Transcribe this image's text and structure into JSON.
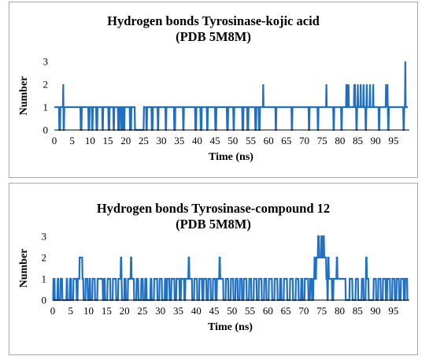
{
  "colors": {
    "series": "#1f6fc4",
    "axis": "#000000",
    "border": "#a6a6a6"
  },
  "chart_data": [
    {
      "type": "line",
      "title": "Hydrogen bonds Tyrosinase-kojic acid",
      "subtitle": "(PDB 5M8M)",
      "xlabel": "Time (ns)",
      "ylabel": "Number",
      "xlim": [
        0,
        99
      ],
      "ylim": [
        0,
        3
      ],
      "xticks": [
        "0",
        "5",
        "10",
        "15",
        "20",
        "25",
        "30",
        "35",
        "40",
        "45",
        "50",
        "55",
        "60",
        "65",
        "70",
        "75",
        "80",
        "85",
        "90",
        "95"
      ],
      "yticks": [
        "0",
        "1",
        "2",
        "3"
      ],
      "grid": false,
      "legend": "none",
      "series": [
        {
          "values_at_0_1ns": "1",
          "gaps_zero": [
            [
              1.4,
              1.6
            ],
            [
              2.6,
              2.7
            ],
            [
              7.4,
              7.6
            ],
            [
              9.6,
              9.8
            ],
            [
              10.6,
              10.7
            ],
            [
              11.8,
              12.0
            ],
            [
              13.5,
              13.6
            ],
            [
              15.2,
              15.4
            ],
            [
              16.6,
              16.7
            ],
            [
              17.9,
              18.2
            ],
            [
              18.8,
              19.0
            ],
            [
              19.5,
              19.6
            ],
            [
              21.2,
              21.5
            ],
            [
              22.6,
              25.0
            ],
            [
              25.8,
              25.9
            ],
            [
              27.3,
              27.5
            ],
            [
              29.0,
              29.1
            ],
            [
              31.2,
              31.3
            ],
            [
              33.6,
              33.8
            ],
            [
              36.1,
              36.2
            ],
            [
              39.5,
              39.7
            ],
            [
              41.0,
              41.2
            ],
            [
              42.8,
              42.9
            ],
            [
              45.1,
              45.3
            ],
            [
              48.4,
              48.6
            ],
            [
              50.2,
              50.3
            ],
            [
              52.7,
              52.9
            ],
            [
              54.1,
              54.3
            ],
            [
              56.3,
              56.5
            ],
            [
              57.3,
              57.5
            ],
            [
              62.0,
              62.1
            ],
            [
              66.5,
              66.6
            ],
            [
              71.3,
              71.4
            ],
            [
              73.8,
              73.9
            ],
            [
              78.2,
              78.3
            ],
            [
              80.4,
              80.5
            ],
            [
              84.6,
              84.7
            ],
            [
              87.2,
              87.3
            ],
            [
              90.9,
              91.0
            ],
            [
              93.5,
              93.6
            ],
            [
              97.8,
              97.9
            ]
          ],
          "peaks_two": [
            2.5,
            58.5,
            76.2,
            81.8,
            82.0,
            82.4,
            84.0,
            84.2,
            85.0,
            85.8,
            86.6,
            87.5,
            88.4,
            89.3,
            92.9,
            93.1,
            93.3
          ],
          "peaks_three": [
            98.3
          ]
        }
      ]
    },
    {
      "type": "line",
      "title": "Hydrogen bonds Tyrosinase-compound 12",
      "subtitle": "(PDB 5M8M)",
      "xlabel": "Time (ns)",
      "ylabel": "Number",
      "xlim": [
        0,
        99
      ],
      "ylim": [
        0,
        3
      ],
      "xticks": [
        "0",
        "5",
        "10",
        "15",
        "20",
        "25",
        "30",
        "35",
        "40",
        "45",
        "50",
        "55",
        "60",
        "65",
        "70",
        "75",
        "80",
        "85",
        "90",
        "95"
      ],
      "yticks": [
        "0",
        "1",
        "2",
        "3"
      ],
      "grid": false,
      "legend": "none",
      "series": [
        {
          "ones": [
            [
              0.2,
              0.5
            ],
            [
              1.4,
              1.5
            ],
            [
              2.2,
              2.6
            ],
            [
              3.9,
              4.0
            ],
            [
              4.8,
              5.1
            ],
            [
              5.8,
              6.6
            ],
            [
              7.0,
              8.5
            ],
            [
              9.2,
              9.7
            ],
            [
              10.3,
              10.4
            ],
            [
              11.1,
              11.7
            ],
            [
              12.5,
              13.9
            ],
            [
              14.4,
              14.5
            ],
            [
              15.3,
              16.0
            ],
            [
              16.8,
              17.6
            ],
            [
              18.3,
              19.2
            ],
            [
              20.0,
              20.3
            ],
            [
              21.0,
              22.6
            ],
            [
              23.4,
              23.8
            ],
            [
              24.7,
              25.1
            ],
            [
              25.8,
              26.1
            ],
            [
              27.3,
              27.5
            ],
            [
              28.3,
              29.1
            ],
            [
              29.8,
              30.4
            ],
            [
              31.3,
              31.4
            ],
            [
              31.9,
              32.5
            ],
            [
              33.1,
              33.9
            ],
            [
              34.5,
              35.3
            ],
            [
              35.8,
              36.6
            ],
            [
              37.0,
              38.8
            ],
            [
              39.5,
              40.2
            ],
            [
              40.9,
              41.6
            ],
            [
              42.1,
              42.8
            ],
            [
              43.4,
              44.0
            ],
            [
              44.7,
              45.3
            ],
            [
              45.8,
              47.5
            ],
            [
              48.3,
              48.9
            ],
            [
              49.7,
              50.3
            ],
            [
              51.0,
              51.5
            ],
            [
              52.2,
              52.7
            ],
            [
              53.3,
              54.0
            ],
            [
              54.8,
              55.3
            ],
            [
              56.1,
              56.8
            ],
            [
              57.5,
              58.2
            ],
            [
              59.0,
              59.5
            ],
            [
              60.3,
              61.1
            ],
            [
              61.9,
              62.6
            ],
            [
              63.4,
              63.7
            ],
            [
              64.5,
              65.3
            ],
            [
              66.2,
              66.9
            ],
            [
              67.8,
              68.5
            ],
            [
              69.3,
              69.6
            ],
            [
              70.3,
              71.2
            ],
            [
              71.8,
              72.2
            ],
            [
              72.7,
              76.5
            ],
            [
              77.0,
              77.8
            ],
            [
              78.3,
              81.6
            ],
            [
              82.8,
              83.5
            ],
            [
              84.5,
              85.1
            ],
            [
              86.2,
              86.6
            ],
            [
              87.3,
              88.0
            ],
            [
              89.5,
              90.1
            ],
            [
              90.8,
              91.4
            ],
            [
              92.1,
              92.8
            ],
            [
              93.3,
              94.0
            ],
            [
              94.7,
              95.3
            ],
            [
              95.9,
              96.5
            ],
            [
              97.1,
              97.8
            ],
            [
              98.3,
              98.8
            ]
          ],
          "twos": [
            [
              7.5,
              8.2
            ],
            [
              19.0,
              19.1
            ],
            [
              21.8,
              21.9
            ],
            [
              37.9,
              38.0
            ],
            [
              46.5,
              46.6
            ],
            [
              73.0,
              73.2
            ],
            [
              73.5,
              76.2
            ],
            [
              76.8,
              76.9
            ],
            [
              79.2,
              79.3
            ],
            [
              87.4,
              87.5
            ]
          ],
          "threes": [
            [
              74.0,
              74.2
            ],
            [
              74.9,
              75.0
            ],
            [
              75.5,
              75.6
            ]
          ]
        }
      ]
    }
  ]
}
